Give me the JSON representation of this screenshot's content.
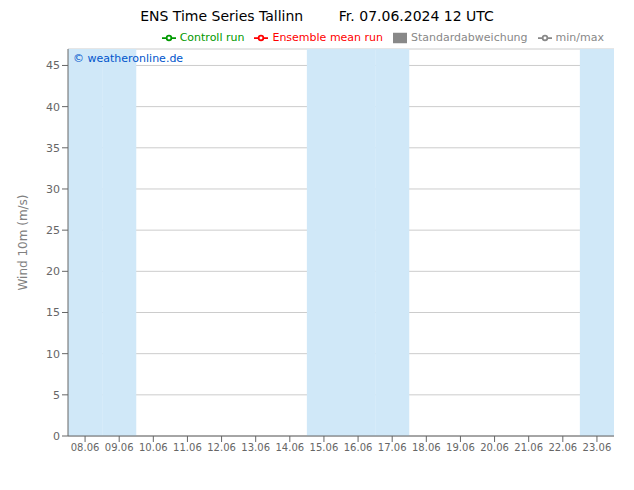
{
  "chart_data": {
    "type": "line",
    "title": "ENS Time Series Tallinn        Fr. 07.06.2024 12 UTC",
    "ylabel": "Wind 10m (m/s)",
    "annotations": [
      "© weatheronline.de"
    ],
    "categories": [
      "08.06",
      "09.06",
      "10.06",
      "11.06",
      "12.06",
      "13.06",
      "14.06",
      "15.06",
      "16.06",
      "17.06",
      "18.06",
      "19.06",
      "20.06",
      "21.06",
      "22.06",
      "23.06"
    ],
    "series": [
      {
        "name": "min/max",
        "color": "#888888",
        "type": "line",
        "values": [
          null,
          null,
          null,
          null,
          null,
          null,
          null,
          null,
          null,
          null,
          null,
          null,
          null,
          null,
          null,
          null
        ]
      },
      {
        "name": "Standardabweichung",
        "color": "#cccccc",
        "type": "area",
        "values": [
          null,
          null,
          null,
          null,
          null,
          null,
          null,
          null,
          null,
          null,
          null,
          null,
          null,
          null,
          null,
          null
        ]
      },
      {
        "name": "Ensemble mean run",
        "color": "#ff0000",
        "type": "line",
        "values": [
          null,
          null,
          null,
          null,
          null,
          null,
          null,
          null,
          null,
          null,
          null,
          null,
          null,
          null,
          null,
          null
        ]
      },
      {
        "name": "Controll run",
        "color": "#009900",
        "type": "line",
        "values": [
          null,
          null,
          null,
          null,
          null,
          null,
          null,
          null,
          null,
          null,
          null,
          null,
          null,
          null,
          null,
          null
        ]
      }
    ],
    "shaded": {
      "categories": [
        "08.06",
        "09.06",
        "15.06",
        "16.06",
        "17.06",
        "23.06"
      ],
      "color": "#d0e8f8"
    },
    "ylim": [
      0,
      47
    ],
    "yticks": [
      0,
      5,
      10,
      15,
      20,
      25,
      30,
      35,
      40,
      45
    ],
    "grid": true,
    "legend": "upper right"
  }
}
